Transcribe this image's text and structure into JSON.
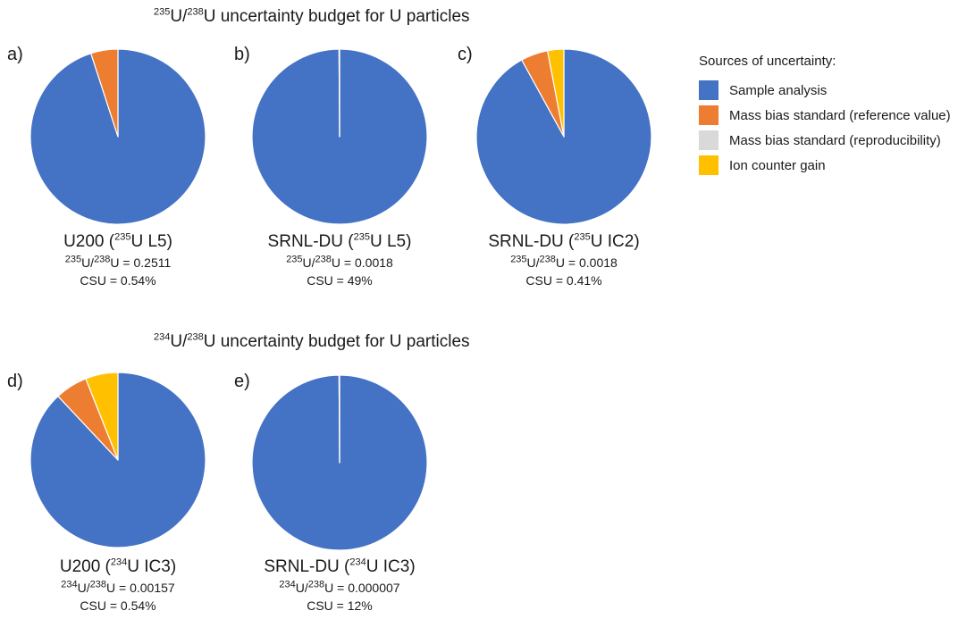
{
  "section_titles": {
    "top": {
      "iso_a": "235",
      "mid": "U/",
      "iso_b": "238",
      "rest": "U uncertainty budget for U particles"
    },
    "bottom": {
      "iso_a": "234",
      "mid": "U/",
      "iso_b": "238",
      "rest": "U uncertainty budget for U particles"
    }
  },
  "legend": {
    "title": "Sources of uncertainty:",
    "items": [
      {
        "label": "Sample analysis",
        "color": "#4472C4"
      },
      {
        "label": "Mass bias standard (reference value)",
        "color": "#ED7D31"
      },
      {
        "label": "Mass bias standard (reproducibility)",
        "color": "#D9D9D9"
      },
      {
        "label": "Ion counter gain",
        "color": "#FFC000"
      }
    ]
  },
  "chart_data": [
    {
      "type": "pie",
      "panel": "a)",
      "title": {
        "name": "U200",
        "iso": "235",
        "detector": "U L5"
      },
      "ratio": {
        "iso_a": "235",
        "iso_b": "238",
        "value": "0.2511"
      },
      "csu": "CSU = 0.54%",
      "categories": [
        "Sample analysis",
        "Mass bias standard (reference value)",
        "Mass bias standard (reproducibility)",
        "Ion counter gain"
      ],
      "values": [
        95,
        5,
        0,
        0
      ]
    },
    {
      "type": "pie",
      "panel": "b)",
      "title": {
        "name": "SRNL-DU",
        "iso": "235",
        "detector": "U L5"
      },
      "ratio": {
        "iso_a": "235",
        "iso_b": "238",
        "value": "0.0018"
      },
      "csu": "CSU = 49%",
      "categories": [
        "Sample analysis",
        "Mass bias standard (reference value)",
        "Mass bias standard (reproducibility)",
        "Ion counter gain"
      ],
      "values": [
        99.9,
        0.05,
        0.05,
        0
      ]
    },
    {
      "type": "pie",
      "panel": "c)",
      "title": {
        "name": "SRNL-DU",
        "iso": "235",
        "detector": "U IC2"
      },
      "ratio": {
        "iso_a": "235",
        "iso_b": "238",
        "value": "0.0018"
      },
      "csu": "CSU = 0.41%",
      "categories": [
        "Sample analysis",
        "Mass bias standard (reference value)",
        "Mass bias standard (reproducibility)",
        "Ion counter gain"
      ],
      "values": [
        92,
        5,
        0,
        3
      ]
    },
    {
      "type": "pie",
      "panel": "d)",
      "title": {
        "name": "U200",
        "iso": "234",
        "detector": "U IC3"
      },
      "ratio": {
        "iso_a": "234",
        "iso_b": "238",
        "value": "0.00157"
      },
      "csu": "CSU = 0.54%",
      "categories": [
        "Sample analysis",
        "Mass bias standard (reference value)",
        "Mass bias standard (reproducibility)",
        "Ion counter gain"
      ],
      "values": [
        88,
        6,
        0,
        6
      ]
    },
    {
      "type": "pie",
      "panel": "e)",
      "title": {
        "name": "SRNL-DU",
        "iso": "234",
        "detector": "U IC3"
      },
      "ratio": {
        "iso_a": "234",
        "iso_b": "238",
        "value": "0.000007"
      },
      "csu": "CSU = 12%",
      "categories": [
        "Sample analysis",
        "Mass bias standard (reference value)",
        "Mass bias standard (reproducibility)",
        "Ion counter gain"
      ],
      "values": [
        99.9,
        0.05,
        0.05,
        0
      ]
    }
  ]
}
